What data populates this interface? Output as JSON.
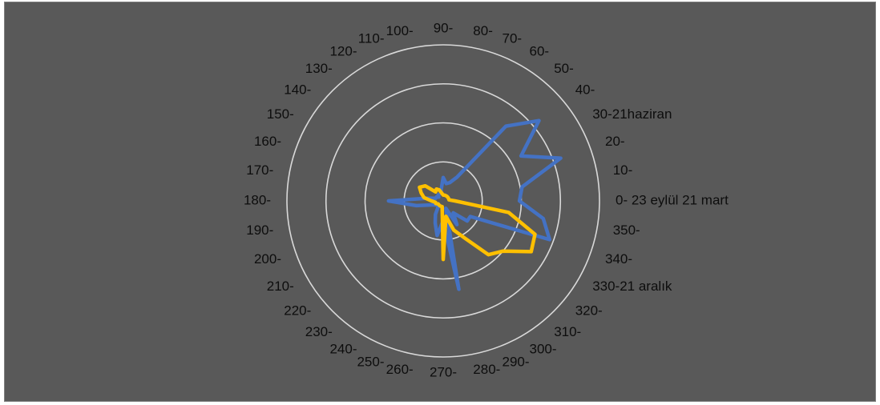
{
  "chart_data": {
    "type": "radar",
    "title": "",
    "categories": [
      "0- 23 eylül 21 mart",
      "10-",
      "20-",
      "30-21haziran",
      "40-",
      "50-",
      "60-",
      "70-",
      "80-",
      "90-",
      "100-",
      "110-",
      "120-",
      "130-",
      "140-",
      "150-",
      "160-",
      "170-",
      "180-",
      "190-",
      "200-",
      "210-",
      "220-",
      "230-",
      "240-",
      "250-",
      "260-",
      "270-",
      "280-",
      "290-",
      "300-",
      "310-",
      "320-",
      "330-21 aralık",
      "340-",
      "350-"
    ],
    "rlim": [
      0,
      4
    ],
    "rings": [
      1,
      2,
      3,
      4
    ],
    "grid": true,
    "legend": "none",
    "series": [
      {
        "color": "#4472c4",
        "values": [
          1.95,
          2.05,
          3.2,
          2.3,
          3.2,
          2.5,
          0.7,
          0.5,
          0.45,
          0.6,
          0.3,
          0.2,
          0.2,
          0.2,
          0.15,
          0.2,
          0.2,
          0.4,
          1.4,
          0.7,
          0.3,
          0.2,
          0.2,
          0.2,
          0.4,
          0.6,
          0.9,
          0.5,
          2.3,
          0.2,
          0.7,
          0.4,
          0.8,
          0.8,
          2.9,
          2.6
        ]
      },
      {
        "color": "#ffc000",
        "values": [
          0.3,
          0.15,
          0.15,
          0.15,
          0.15,
          0.15,
          0.15,
          0.15,
          0.15,
          0.15,
          0.2,
          0.3,
          0.35,
          0.3,
          0.6,
          0.7,
          0.6,
          0.5,
          0.3,
          0.2,
          0.2,
          0.15,
          0.15,
          0.15,
          0.15,
          0.15,
          0.15,
          1.5,
          0.4,
          0.8,
          1.1,
          1.8,
          2.0,
          2.6,
          2.5,
          1.7
        ]
      }
    ]
  }
}
